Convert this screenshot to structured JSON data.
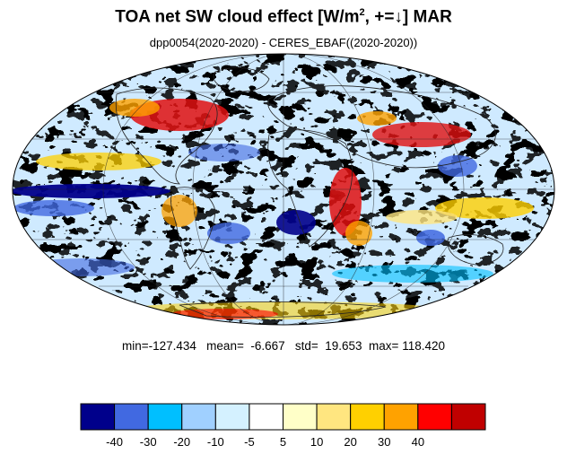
{
  "title": {
    "prefix": "TOA net SW cloud effect [W/m",
    "sup": "2",
    "suffix": ", +=↓]  MAR"
  },
  "subtitle": "dpp0054(2020-2020) - CERES_EBAF((2020-2020))",
  "stats": "min=-127.434   mean=  -6.667   std=  19.653  max= 118.420",
  "colorbar": {
    "colors": [
      "#00008b",
      "#4169e1",
      "#00bfff",
      "#a0d0ff",
      "#d4f1ff",
      "#ffffff",
      "#ffffc8",
      "#ffe680",
      "#ffd000",
      "#ffa200",
      "#ff0000",
      "#c00000"
    ],
    "labels": [
      "-40",
      "-30",
      "-20",
      "-10",
      "-5",
      "5",
      "10",
      "20",
      "30",
      "40"
    ]
  }
}
